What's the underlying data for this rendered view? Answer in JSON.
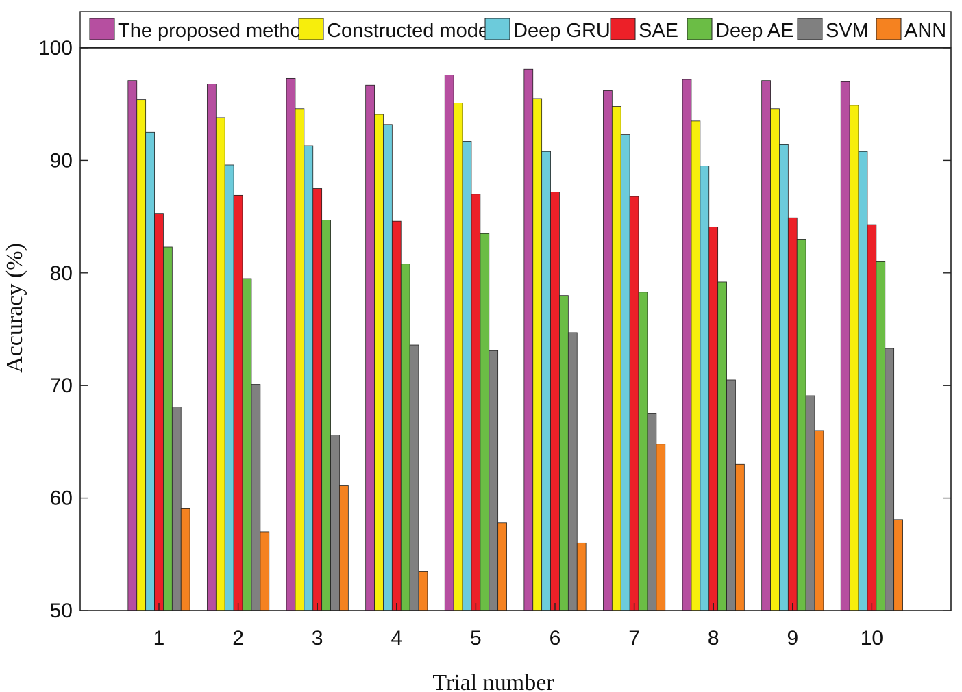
{
  "chart_data": {
    "type": "bar",
    "title": "",
    "xlabel": "Trial number",
    "ylabel": "Accuracy (%)",
    "ylim": [
      50,
      100
    ],
    "yticks": [
      50,
      60,
      70,
      80,
      90,
      100
    ],
    "categories": [
      "1",
      "2",
      "3",
      "4",
      "5",
      "6",
      "7",
      "8",
      "9",
      "10"
    ],
    "grid": false,
    "legend_position": "top",
    "series": [
      {
        "name": "The proposed method",
        "color": "#b64fa0",
        "values": [
          97.1,
          96.8,
          97.3,
          96.7,
          97.6,
          98.1,
          96.2,
          97.2,
          97.1,
          97.0
        ]
      },
      {
        "name": "Constructed model",
        "color": "#f7ee0c",
        "values": [
          95.4,
          93.8,
          94.6,
          94.1,
          95.1,
          95.5,
          94.8,
          93.5,
          94.6,
          94.9
        ]
      },
      {
        "name": "Deep GRU",
        "color": "#6ccbdb",
        "values": [
          92.5,
          89.6,
          91.3,
          93.2,
          91.7,
          90.8,
          92.3,
          89.5,
          91.4,
          90.8
        ]
      },
      {
        "name": "SAE",
        "color": "#ec2028",
        "values": [
          85.3,
          86.9,
          87.5,
          84.6,
          87.0,
          87.2,
          86.8,
          84.1,
          84.9,
          84.3
        ]
      },
      {
        "name": "Deep AE",
        "color": "#6bbd45",
        "values": [
          82.3,
          79.5,
          84.7,
          80.8,
          83.5,
          78.0,
          78.3,
          79.2,
          83.0,
          81.0
        ]
      },
      {
        "name": "SVM",
        "color": "#808080",
        "values": [
          68.1,
          70.1,
          65.6,
          73.6,
          73.1,
          74.7,
          67.5,
          70.5,
          69.1,
          73.3
        ]
      },
      {
        "name": "ANN",
        "color": "#f58220",
        "values": [
          59.1,
          57.0,
          61.1,
          53.5,
          57.8,
          56.0,
          64.8,
          63.0,
          66.0,
          58.1
        ]
      }
    ]
  }
}
